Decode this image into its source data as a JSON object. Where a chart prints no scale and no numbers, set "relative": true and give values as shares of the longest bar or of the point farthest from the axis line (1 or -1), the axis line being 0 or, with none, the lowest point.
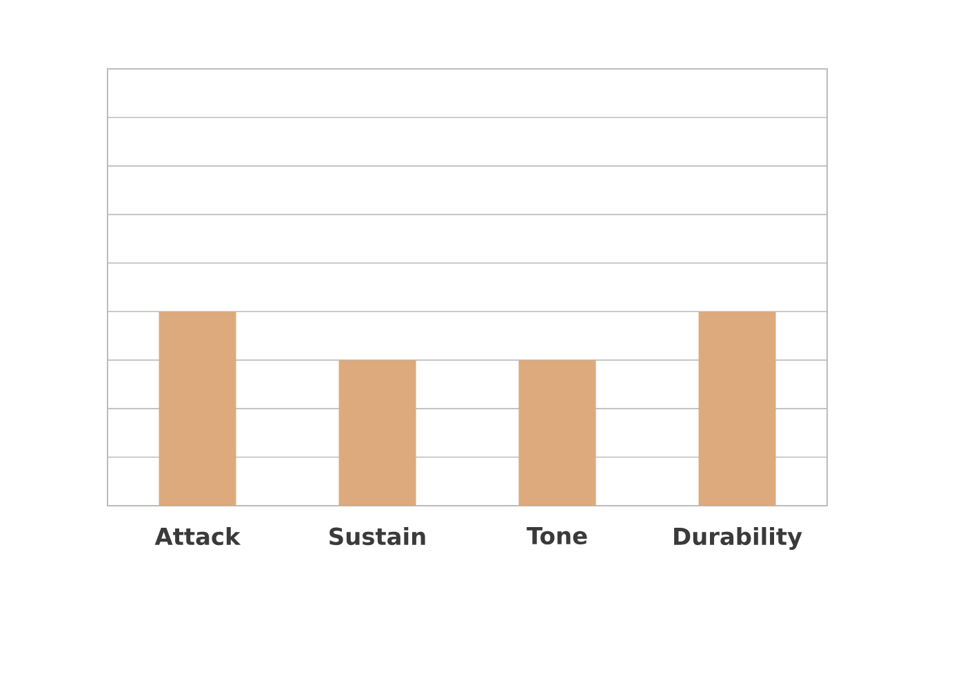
{
  "chart_data": {
    "type": "bar",
    "categories": [
      "Attack",
      "Sustain",
      "Tone",
      "Durability"
    ],
    "values": [
      1,
      0.75,
      0.75,
      1
    ],
    "color": "#dcaa7c",
    "relative": true,
    "grid": "y"
  }
}
